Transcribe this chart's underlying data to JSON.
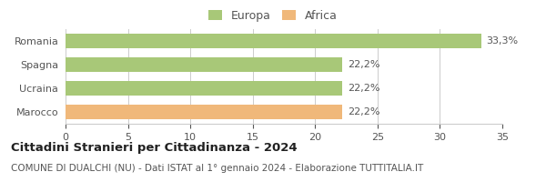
{
  "categories": [
    "Marocco",
    "Ucraina",
    "Spagna",
    "Romania"
  ],
  "values": [
    22.2,
    22.2,
    22.2,
    33.3
  ],
  "labels": [
    "22,2%",
    "22,2%",
    "22,2%",
    "33,3%"
  ],
  "bar_colors": [
    "#f0b87a",
    "#a8c878",
    "#a8c878",
    "#a8c878"
  ],
  "legend_items": [
    {
      "label": "Europa",
      "color": "#a8c878"
    },
    {
      "label": "Africa",
      "color": "#f0b87a"
    }
  ],
  "xlim": [
    0,
    35
  ],
  "xticks": [
    0,
    5,
    10,
    15,
    20,
    25,
    30,
    35
  ],
  "title_bold": "Cittadini Stranieri per Cittadinanza - 2024",
  "subtitle": "COMUNE DI DUALCHI (NU) - Dati ISTAT al 1° gennaio 2024 - Elaborazione TUTTITALIA.IT",
  "background_color": "#ffffff",
  "bar_edge_color": "none",
  "grid_color": "#cccccc",
  "text_color": "#555555",
  "label_fontsize": 8,
  "tick_fontsize": 8,
  "title_fontsize": 9.5,
  "subtitle_fontsize": 7.5,
  "legend_fontsize": 9
}
